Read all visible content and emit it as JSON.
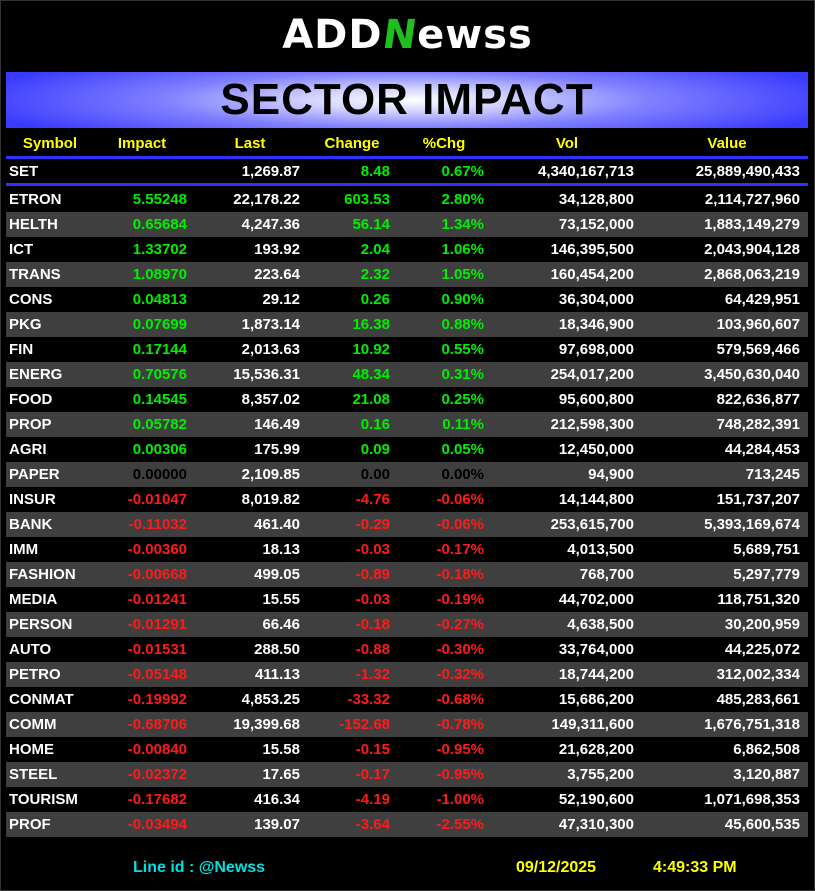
{
  "logo": {
    "pre": "ADD",
    "n": "N",
    "post": "ewss"
  },
  "title": "SECTOR IMPACT",
  "headers": {
    "symbol": "Symbol",
    "impact": "Impact",
    "last": "Last",
    "change": "Change",
    "pct": "%Chg",
    "vol": "Vol",
    "value": "Value"
  },
  "index": {
    "symbol": "SET",
    "impact": "",
    "last": "1,269.87",
    "change": "8.48",
    "pct": "0.67%",
    "vol": "4,340,167,713",
    "value": "25,889,490,433"
  },
  "sectors": [
    {
      "symbol": "ETRON",
      "impact": "5.55248",
      "last": "22,178.22",
      "change": "603.53",
      "pct": "2.80%",
      "vol": "34,128,800",
      "value": "2,114,727,960"
    },
    {
      "symbol": "HELTH",
      "impact": "0.65684",
      "last": "4,247.36",
      "change": "56.14",
      "pct": "1.34%",
      "vol": "73,152,000",
      "value": "1,883,149,279"
    },
    {
      "symbol": "ICT",
      "impact": "1.33702",
      "last": "193.92",
      "change": "2.04",
      "pct": "1.06%",
      "vol": "146,395,500",
      "value": "2,043,904,128"
    },
    {
      "symbol": "TRANS",
      "impact": "1.08970",
      "last": "223.64",
      "change": "2.32",
      "pct": "1.05%",
      "vol": "160,454,200",
      "value": "2,868,063,219"
    },
    {
      "symbol": "CONS",
      "impact": "0.04813",
      "last": "29.12",
      "change": "0.26",
      "pct": "0.90%",
      "vol": "36,304,000",
      "value": "64,429,951"
    },
    {
      "symbol": "PKG",
      "impact": "0.07699",
      "last": "1,873.14",
      "change": "16.38",
      "pct": "0.88%",
      "vol": "18,346,900",
      "value": "103,960,607"
    },
    {
      "symbol": "FIN",
      "impact": "0.17144",
      "last": "2,013.63",
      "change": "10.92",
      "pct": "0.55%",
      "vol": "97,698,000",
      "value": "579,569,466"
    },
    {
      "symbol": "ENERG",
      "impact": "0.70576",
      "last": "15,536.31",
      "change": "48.34",
      "pct": "0.31%",
      "vol": "254,017,200",
      "value": "3,450,630,040"
    },
    {
      "symbol": "FOOD",
      "impact": "0.14545",
      "last": "8,357.02",
      "change": "21.08",
      "pct": "0.25%",
      "vol": "95,600,800",
      "value": "822,636,877"
    },
    {
      "symbol": "PROP",
      "impact": "0.05782",
      "last": "146.49",
      "change": "0.16",
      "pct": "0.11%",
      "vol": "212,598,300",
      "value": "748,282,391"
    },
    {
      "symbol": "AGRI",
      "impact": "0.00306",
      "last": "175.99",
      "change": "0.09",
      "pct": "0.05%",
      "vol": "12,450,000",
      "value": "44,284,453"
    },
    {
      "symbol": "PAPER",
      "impact": "0.00000",
      "last": "2,109.85",
      "change": "0.00",
      "pct": "0.00%",
      "vol": "94,900",
      "value": "713,245"
    },
    {
      "symbol": "INSUR",
      "impact": "-0.01047",
      "last": "8,019.82",
      "change": "-4.76",
      "pct": "-0.06%",
      "vol": "14,144,800",
      "value": "151,737,207"
    },
    {
      "symbol": "BANK",
      "impact": "-0.11032",
      "last": "461.40",
      "change": "-0.29",
      "pct": "-0.06%",
      "vol": "253,615,700",
      "value": "5,393,169,674"
    },
    {
      "symbol": "IMM",
      "impact": "-0.00360",
      "last": "18.13",
      "change": "-0.03",
      "pct": "-0.17%",
      "vol": "4,013,500",
      "value": "5,689,751"
    },
    {
      "symbol": "FASHION",
      "impact": "-0.00668",
      "last": "499.05",
      "change": "-0.89",
      "pct": "-0.18%",
      "vol": "768,700",
      "value": "5,297,779"
    },
    {
      "symbol": "MEDIA",
      "impact": "-0.01241",
      "last": "15.55",
      "change": "-0.03",
      "pct": "-0.19%",
      "vol": "44,702,000",
      "value": "118,751,320"
    },
    {
      "symbol": "PERSON",
      "impact": "-0.01291",
      "last": "66.46",
      "change": "-0.18",
      "pct": "-0.27%",
      "vol": "4,638,500",
      "value": "30,200,959"
    },
    {
      "symbol": "AUTO",
      "impact": "-0.01531",
      "last": "288.50",
      "change": "-0.88",
      "pct": "-0.30%",
      "vol": "33,764,000",
      "value": "44,225,072"
    },
    {
      "symbol": "PETRO",
      "impact": "-0.05148",
      "last": "411.13",
      "change": "-1.32",
      "pct": "-0.32%",
      "vol": "18,744,200",
      "value": "312,002,334"
    },
    {
      "symbol": "CONMAT",
      "impact": "-0.19992",
      "last": "4,853.25",
      "change": "-33.32",
      "pct": "-0.68%",
      "vol": "15,686,200",
      "value": "485,283,661"
    },
    {
      "symbol": "COMM",
      "impact": "-0.68706",
      "last": "19,399.68",
      "change": "-152.68",
      "pct": "-0.78%",
      "vol": "149,311,600",
      "value": "1,676,751,318"
    },
    {
      "symbol": "HOME",
      "impact": "-0.00840",
      "last": "15.58",
      "change": "-0.15",
      "pct": "-0.95%",
      "vol": "21,628,200",
      "value": "6,862,508"
    },
    {
      "symbol": "STEEL",
      "impact": "-0.02372",
      "last": "17.65",
      "change": "-0.17",
      "pct": "-0.95%",
      "vol": "3,755,200",
      "value": "3,120,887"
    },
    {
      "symbol": "TOURISM",
      "impact": "-0.17682",
      "last": "416.34",
      "change": "-4.19",
      "pct": "-1.00%",
      "vol": "52,190,600",
      "value": "1,071,698,353"
    },
    {
      "symbol": "PROF",
      "impact": "-0.03494",
      "last": "139.07",
      "change": "-3.64",
      "pct": "-2.55%",
      "vol": "47,310,300",
      "value": "45,600,535"
    }
  ],
  "footer": {
    "line_id": "Line id  : @Newss",
    "date": "09/12/2025",
    "time": "4:49:33 PM"
  },
  "colors": {
    "positive": "#00ee00",
    "negative": "#ff1a1a",
    "header": "#ffff00",
    "accent": "#3030ff"
  }
}
